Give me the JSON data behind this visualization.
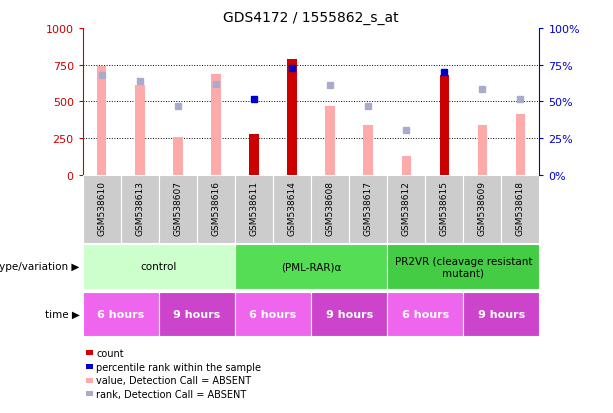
{
  "title": "GDS4172 / 1555862_s_at",
  "samples": [
    "GSM538610",
    "GSM538613",
    "GSM538607",
    "GSM538616",
    "GSM538611",
    "GSM538614",
    "GSM538608",
    "GSM538617",
    "GSM538612",
    "GSM538615",
    "GSM538609",
    "GSM538618"
  ],
  "count_values": [
    null,
    null,
    null,
    null,
    280,
    790,
    null,
    null,
    null,
    680,
    null,
    null
  ],
  "count_absent": [
    740,
    610,
    255,
    690,
    null,
    null,
    470,
    340,
    130,
    null,
    340,
    415
  ],
  "rank_present_pct": [
    null,
    null,
    null,
    null,
    52,
    73,
    null,
    null,
    null,
    70,
    null,
    null
  ],
  "rank_absent_pct": [
    68,
    64,
    47,
    62,
    null,
    null,
    61.5,
    47,
    30.5,
    null,
    58.5,
    52
  ],
  "ylim_left": [
    0,
    1000
  ],
  "ylim_right": [
    0,
    100
  ],
  "yticks_left": [
    0,
    250,
    500,
    750,
    1000
  ],
  "yticks_right": [
    0,
    25,
    50,
    75,
    100
  ],
  "count_color": "#cc0000",
  "count_absent_color": "#ffaaaa",
  "rank_present_color": "#0000cc",
  "rank_absent_color": "#aaaacc",
  "groups": [
    {
      "label": "control",
      "start": 0,
      "end": 4,
      "color": "#ccffcc"
    },
    {
      "label": "(PML-RAR)α",
      "start": 4,
      "end": 8,
      "color": "#55dd55"
    },
    {
      "label": "PR2VR (cleavage resistant\nmutant)",
      "start": 8,
      "end": 12,
      "color": "#44cc44"
    }
  ],
  "time_groups": [
    {
      "label": "6 hours",
      "start": 0,
      "end": 2,
      "color": "#ee66ee"
    },
    {
      "label": "9 hours",
      "start": 2,
      "end": 4,
      "color": "#cc44cc"
    },
    {
      "label": "6 hours",
      "start": 4,
      "end": 6,
      "color": "#ee66ee"
    },
    {
      "label": "9 hours",
      "start": 6,
      "end": 8,
      "color": "#cc44cc"
    },
    {
      "label": "6 hours",
      "start": 8,
      "end": 10,
      "color": "#ee66ee"
    },
    {
      "label": "9 hours",
      "start": 10,
      "end": 12,
      "color": "#cc44cc"
    }
  ],
  "legend_items": [
    {
      "label": "count",
      "color": "#cc0000"
    },
    {
      "label": "percentile rank within the sample",
      "color": "#0000cc"
    },
    {
      "label": "value, Detection Call = ABSENT",
      "color": "#ffaaaa"
    },
    {
      "label": "rank, Detection Call = ABSENT",
      "color": "#aaaacc"
    }
  ],
  "genotype_label": "genotype/variation",
  "time_label": "time",
  "xtick_bg": "#cccccc"
}
